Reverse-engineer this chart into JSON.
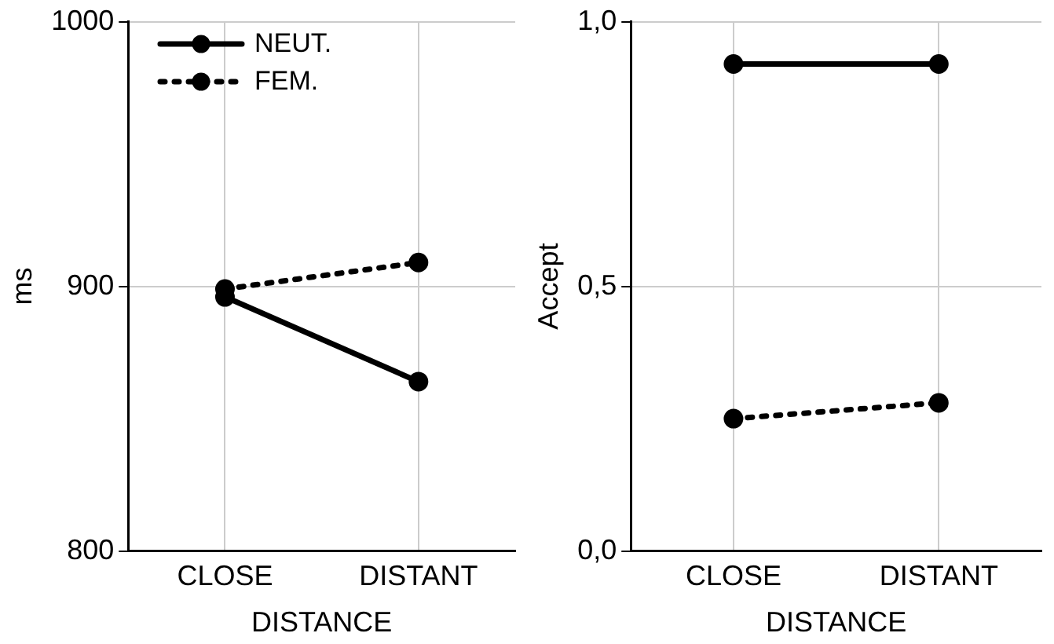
{
  "chart_data": [
    {
      "type": "line",
      "xlabel": "DISTANCE",
      "ylabel": "ms",
      "categories": [
        "CLOSE",
        "DISTANT"
      ],
      "ylim": [
        800,
        1000
      ],
      "yticks": [
        800,
        900,
        1000
      ],
      "grid": true,
      "legend": "top left",
      "marker": "circle",
      "series": [
        {
          "name": "NEUT.",
          "color": "#000000",
          "line_style": "solid",
          "values": [
            896,
            864
          ]
        },
        {
          "name": "FEM.",
          "color": "#000000",
          "line_style": "dotted",
          "values": [
            899,
            909
          ]
        }
      ]
    },
    {
      "type": "line",
      "xlabel": "DISTANCE",
      "ylabel": "Accept",
      "categories": [
        "CLOSE",
        "DISTANT"
      ],
      "ylim": [
        0,
        1
      ],
      "yticks": [
        {
          "value": 0,
          "label": "0,0"
        },
        {
          "value": 0.5,
          "label": "0,5"
        },
        {
          "value": 1,
          "label": "1,0"
        }
      ],
      "grid": true,
      "marker": "circle",
      "series": [
        {
          "color": "#000000",
          "line_style": "solid",
          "values": [
            0.92,
            0.92
          ]
        },
        {
          "color": "#000000",
          "line_style": "dotted",
          "values": [
            0.25,
            0.28
          ]
        }
      ]
    }
  ]
}
